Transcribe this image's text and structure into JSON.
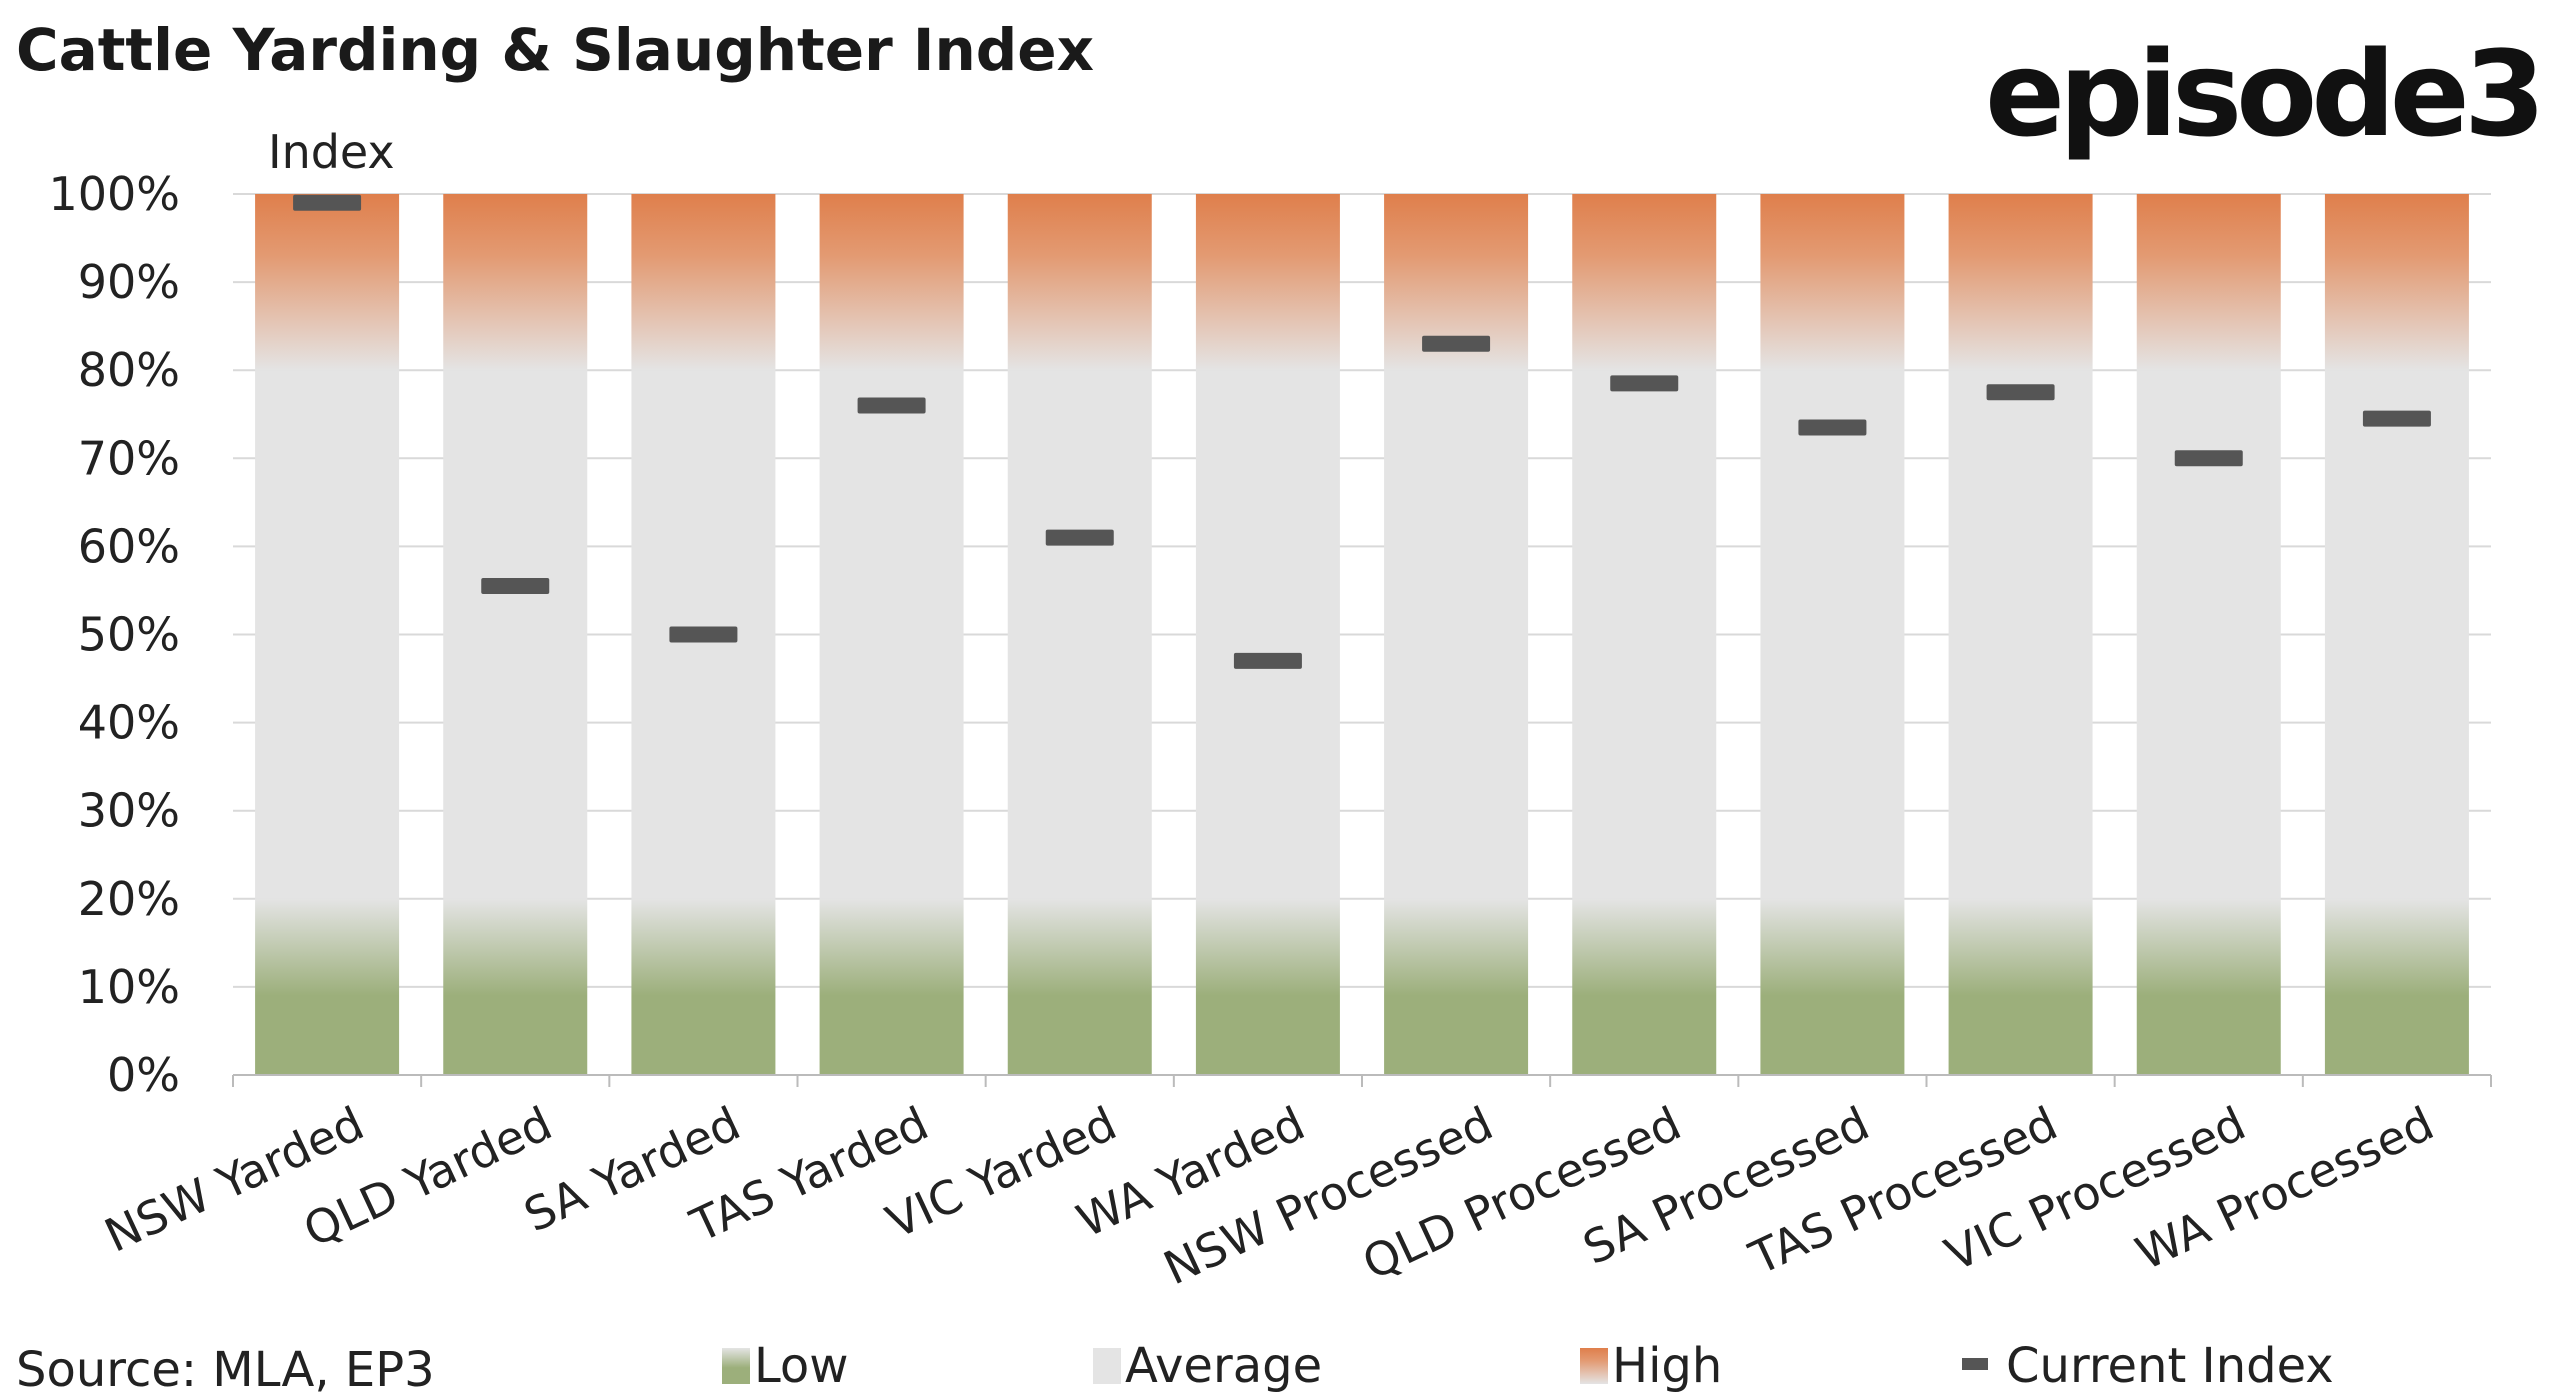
{
  "chart_data": {
    "type": "bar",
    "title": "Cattle Yarding & Slaughter Index",
    "ylabel": "Index",
    "ylim": [
      0,
      100
    ],
    "yticks": [
      "0%",
      "10%",
      "20%",
      "30%",
      "40%",
      "50%",
      "60%",
      "70%",
      "80%",
      "90%",
      "100%"
    ],
    "grid": true,
    "legend_position": "bottom",
    "categories": [
      "NSW Yarded",
      "QLD Yarded",
      "SA Yarded",
      "TAS Yarded",
      "VIC Yarded",
      "WA Yarded",
      "NSW Processed",
      "QLD Processed",
      "SA Processed",
      "TAS Processed",
      "VIC Processed",
      "WA Processed"
    ],
    "bands": [
      {
        "name": "Low",
        "from": 0,
        "to": 20,
        "color": "#9caf7b"
      },
      {
        "name": "Average",
        "from": 20,
        "to": 80,
        "color": "#e4e4e4"
      },
      {
        "name": "High",
        "from": 80,
        "to": 100,
        "color": "#df7f4c"
      }
    ],
    "series": [
      {
        "name": "Current Index",
        "color": "#555555",
        "values": [
          99,
          55.5,
          50,
          76,
          61,
          47,
          83,
          78.5,
          73.5,
          77.5,
          70,
          74.5
        ]
      }
    ],
    "source": "Source: MLA, EP3"
  },
  "logo_text": "episode3"
}
